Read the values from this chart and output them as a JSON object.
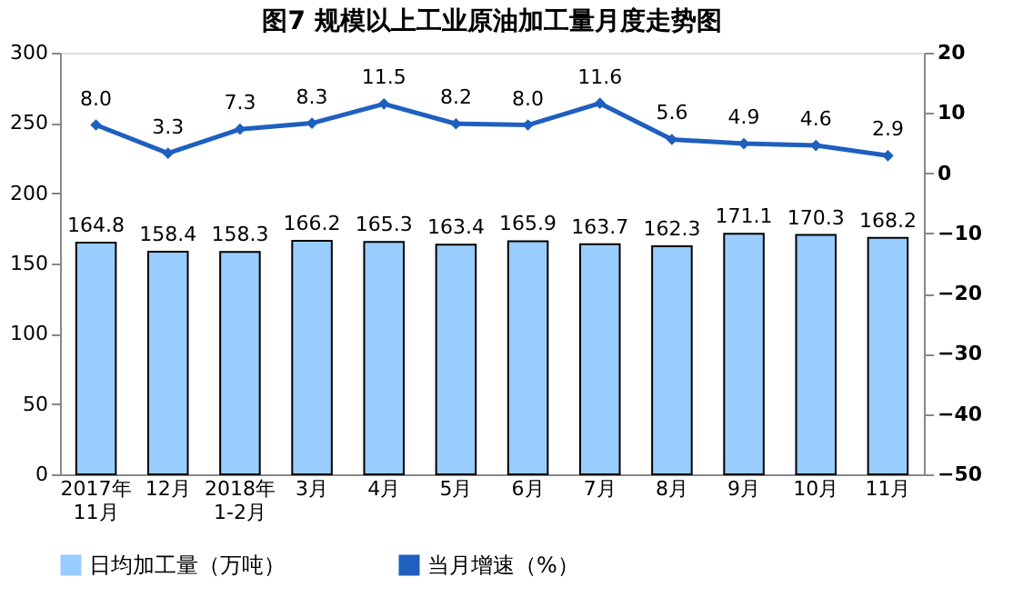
{
  "chart_data": {
    "type": "bar",
    "title": "图7  规模以上工业原油加工量月度走势图",
    "categories": [
      "2017年\n11月",
      "12月",
      "2018年\n1-2月",
      "3月",
      "4月",
      "5月",
      "6月",
      "7月",
      "8月",
      "9月",
      "10月",
      "11月"
    ],
    "series": [
      {
        "name": "日均加工量（万吨）",
        "color": "#99ccff",
        "values": [
          164.8,
          158.4,
          158.3,
          166.2,
          165.3,
          163.4,
          165.9,
          163.7,
          162.3,
          171.1,
          170.3,
          168.2
        ],
        "value_labels": [
          "164.8",
          "158.4",
          "158.3",
          "166.2",
          "165.3",
          "163.4",
          "165.9",
          "163.7",
          "162.3",
          "171.1",
          "170.3",
          "168.2"
        ]
      },
      {
        "name": "当月增速（%）",
        "type": "line",
        "axis": "y2",
        "color": "#1f5fbf",
        "marker": "diamond",
        "line_style": "solid",
        "values": [
          8.0,
          3.3,
          7.3,
          8.3,
          11.5,
          8.2,
          8.0,
          11.6,
          5.6,
          4.9,
          4.6,
          2.9
        ],
        "value_labels": [
          "8.0",
          "3.3",
          "7.3",
          "8.3",
          "11.5",
          "8.2",
          "8.0",
          "11.6",
          "5.6",
          "4.9",
          "4.6",
          "2.9"
        ]
      }
    ],
    "ylim": [
      0,
      300
    ],
    "yticks": [
      0,
      50,
      100,
      150,
      200,
      250,
      300
    ],
    "y2lim": [
      -50,
      20
    ],
    "y2ticks": [
      -50,
      -40,
      -30,
      -20,
      -10,
      0,
      10,
      20
    ],
    "grid": false,
    "legend": "bottom"
  }
}
